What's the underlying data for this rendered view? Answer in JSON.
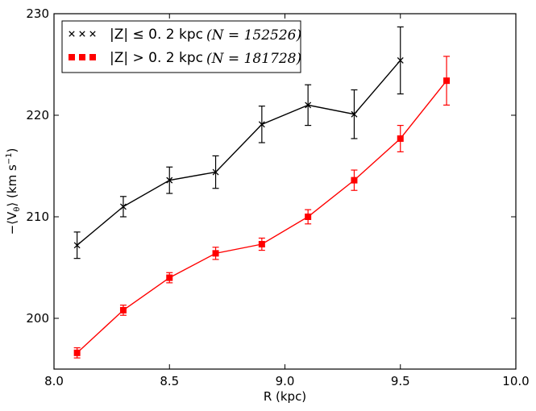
{
  "chart_data": {
    "type": "line",
    "title": "",
    "xlabel": "R (kpc)",
    "ylabel": "−⟨V",
    "ylabel_sub": "θ",
    "ylabel_unit": "⟩ (km s",
    "ylabel_sup": "−1",
    "ylabel_end": ")",
    "xlim": [
      8.0,
      10.0
    ],
    "ylim": [
      195,
      230
    ],
    "xticks": [
      8.0,
      8.5,
      9.0,
      9.5,
      10.0
    ],
    "xtick_labels": [
      "8.0",
      "8.5",
      "9.0",
      "9.5",
      "10.0"
    ],
    "yticks": [
      200,
      210,
      220,
      230
    ],
    "ytick_labels": [
      "200",
      "210",
      "220",
      "230"
    ],
    "grid": false,
    "legend_position": "top-left",
    "series": [
      {
        "name": "|Z| ≤ 0. 2 kpc",
        "n_text": "(N = 152526)",
        "marker": "x",
        "color": "#000000",
        "x": [
          8.1,
          8.3,
          8.5,
          8.7,
          8.9,
          9.1,
          9.3,
          9.5
        ],
        "y": [
          207.2,
          211.0,
          213.6,
          214.4,
          219.1,
          221.0,
          220.1,
          225.4
        ],
        "yerr": [
          1.3,
          1.0,
          1.3,
          1.6,
          1.8,
          2.0,
          2.4,
          3.3
        ]
      },
      {
        "name": "|Z| > 0. 2 kpc",
        "n_text": "(N = 181728)",
        "marker": "s",
        "color": "#ff0000",
        "x": [
          8.1,
          8.3,
          8.5,
          8.7,
          8.9,
          9.1,
          9.3,
          9.5,
          9.7
        ],
        "y": [
          196.6,
          200.8,
          204.0,
          206.4,
          207.3,
          210.0,
          213.6,
          217.7,
          223.4
        ],
        "yerr": [
          0.5,
          0.5,
          0.5,
          0.6,
          0.6,
          0.7,
          1.0,
          1.3,
          2.4
        ]
      }
    ]
  }
}
